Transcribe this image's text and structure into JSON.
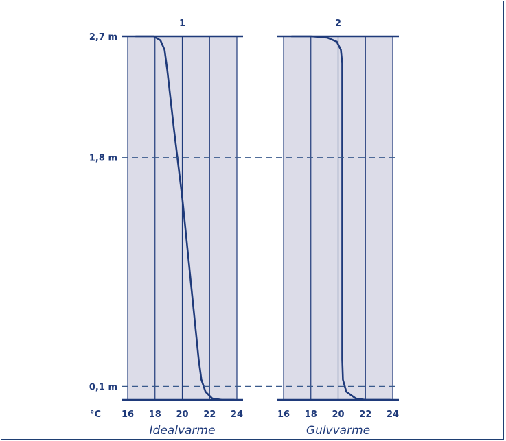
{
  "colors": {
    "panel_bg": "#dcdce8",
    "line": "#1f3a7a",
    "dashed": "#3a5a8c",
    "frame": "#1f3f73"
  },
  "chart_data": [
    {
      "type": "line",
      "title": "1",
      "caption": "Idealvarme",
      "x_unit_label": "°C",
      "x_ticks": [
        "16",
        "18",
        "20",
        "22",
        "24"
      ],
      "xlim": [
        16,
        24
      ],
      "y_ticks": [
        {
          "value": 2.7,
          "label": "2,7 m"
        },
        {
          "value": 1.8,
          "label": "1,8 m"
        },
        {
          "value": 0.1,
          "label": "0,1 m"
        }
      ],
      "ylim": [
        0,
        2.7
      ],
      "grid": true,
      "series": [
        {
          "points": [
            [
              16.6,
              2.7
            ],
            [
              17.9,
              2.7
            ],
            [
              18.4,
              2.67
            ],
            [
              18.7,
              2.6
            ],
            [
              18.9,
              2.45
            ],
            [
              19.4,
              2.0
            ],
            [
              20.0,
              1.5
            ],
            [
              20.6,
              0.9
            ],
            [
              21.2,
              0.3
            ],
            [
              21.4,
              0.15
            ],
            [
              21.7,
              0.06
            ],
            [
              22.2,
              0.01
            ],
            [
              22.9,
              0.0
            ],
            [
              23.8,
              0.0
            ]
          ]
        }
      ]
    },
    {
      "type": "line",
      "title": "2",
      "caption": "Gulvvarme",
      "x_unit_label": "",
      "x_ticks": [
        "16",
        "18",
        "20",
        "22",
        "24"
      ],
      "xlim": [
        16,
        24
      ],
      "y_ticks": [],
      "ylim": [
        0,
        2.7
      ],
      "grid": true,
      "series": [
        {
          "points": [
            [
              16.6,
              2.7
            ],
            [
              18.0,
              2.7
            ],
            [
              19.2,
              2.69
            ],
            [
              19.9,
              2.66
            ],
            [
              20.2,
              2.6
            ],
            [
              20.3,
              2.5
            ],
            [
              20.3,
              2.3
            ],
            [
              20.3,
              0.3
            ],
            [
              20.35,
              0.15
            ],
            [
              20.6,
              0.06
            ],
            [
              21.3,
              0.01
            ],
            [
              22.0,
              0.0
            ],
            [
              23.8,
              0.0
            ]
          ]
        }
      ]
    }
  ]
}
